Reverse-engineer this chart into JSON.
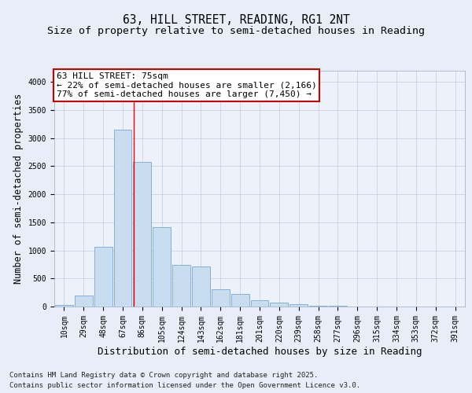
{
  "title1": "63, HILL STREET, READING, RG1 2NT",
  "title2": "Size of property relative to semi-detached houses in Reading",
  "xlabel": "Distribution of semi-detached houses by size in Reading",
  "ylabel": "Number of semi-detached properties",
  "categories": [
    "10sqm",
    "29sqm",
    "48sqm",
    "67sqm",
    "86sqm",
    "105sqm",
    "124sqm",
    "143sqm",
    "162sqm",
    "181sqm",
    "201sqm",
    "220sqm",
    "239sqm",
    "258sqm",
    "277sqm",
    "296sqm",
    "315sqm",
    "334sqm",
    "353sqm",
    "372sqm",
    "391sqm"
  ],
  "values": [
    25,
    190,
    1060,
    3150,
    2580,
    1410,
    740,
    720,
    310,
    225,
    115,
    65,
    38,
    18,
    8,
    4,
    2,
    1,
    0,
    0,
    0
  ],
  "bar_color": "#c9ddf0",
  "bar_edge_color": "#6699cc",
  "red_line_x": 3.55,
  "annotation_text": "63 HILL STREET: 75sqm\n← 22% of semi-detached houses are smaller (2,166)\n77% of semi-detached houses are larger (7,450) →",
  "annotation_box_color": "#ffffff",
  "annotation_box_edge": "#cc0000",
  "ylim": [
    0,
    4200
  ],
  "yticks": [
    0,
    500,
    1000,
    1500,
    2000,
    2500,
    3000,
    3500,
    4000
  ],
  "footnote1": "Contains HM Land Registry data © Crown copyright and database right 2025.",
  "footnote2": "Contains public sector information licensed under the Open Government Licence v3.0.",
  "background_color": "#e8eef8",
  "plot_bg_color": "#edf2fa",
  "grid_color": "#c0cce0",
  "title_fontsize": 10.5,
  "subtitle_fontsize": 9.5,
  "axis_label_fontsize": 8.5,
  "tick_fontsize": 7,
  "annotation_fontsize": 8,
  "footnote_fontsize": 6.5
}
